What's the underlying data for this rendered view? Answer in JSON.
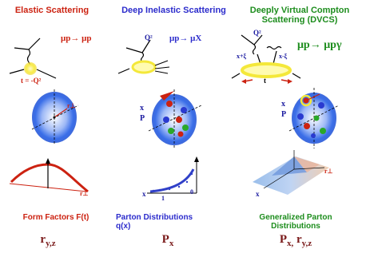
{
  "headers": {
    "elastic": "Elastic Scattering",
    "dis": "Deep Inelastic Scattering",
    "dvcs_line1": "Deeply Virtual Compton",
    "dvcs_line2": "Scattering (DVCS)"
  },
  "reactions": {
    "elastic": "μp→ μp",
    "dis": "μp→ μX",
    "dvcs": "μp→ μpγ"
  },
  "labels": {
    "t_elastic": "t = -Q²",
    "q2_dis": "Q²",
    "q2_dvcs": "Q²",
    "xi_left": "x+ξ",
    "xi_right": "x-ξ",
    "t_dvcs": "t",
    "r_perp": "r⊥",
    "x_dis": "x",
    "p_dis": "P",
    "x_dvcs": "x",
    "p_dvcs": "P",
    "r_perp_bottom": "r⊥",
    "x_bottom": "x",
    "one": "1",
    "zero": "0",
    "x_gpd": "x"
  },
  "footers": {
    "ff": "Form Factors F(t)",
    "pd_line1": "Parton Distributions",
    "pd_line2": "q(x)",
    "gpd_line1": "Generalized Parton",
    "gpd_line2": "Distributions"
  },
  "subs": {
    "r_main": "r",
    "r_idx": "y,z",
    "p_main": "P",
    "p_idx": "x",
    "g_p": "P",
    "g_pidx": "x,",
    "g_r": " r",
    "g_ridx": "y,z"
  },
  "colors": {
    "elastic": "#cc2211",
    "dis": "#2c2ccc",
    "dvcs": "#1d8d1d",
    "blob_blue": "#3a6ee8",
    "yellow": "#f4e83a"
  }
}
